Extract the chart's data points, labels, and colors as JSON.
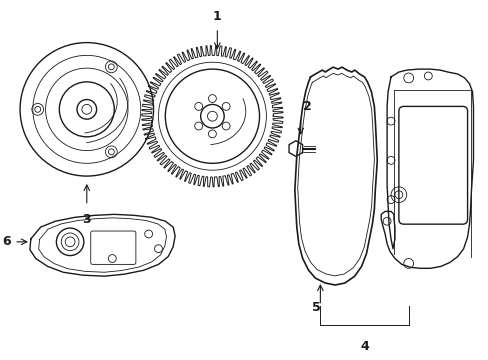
{
  "background_color": "#ffffff",
  "line_color": "#1a1a1a",
  "lw": 1.0,
  "tlw": 0.6,
  "figsize": [
    4.89,
    3.6
  ],
  "dpi": 100
}
